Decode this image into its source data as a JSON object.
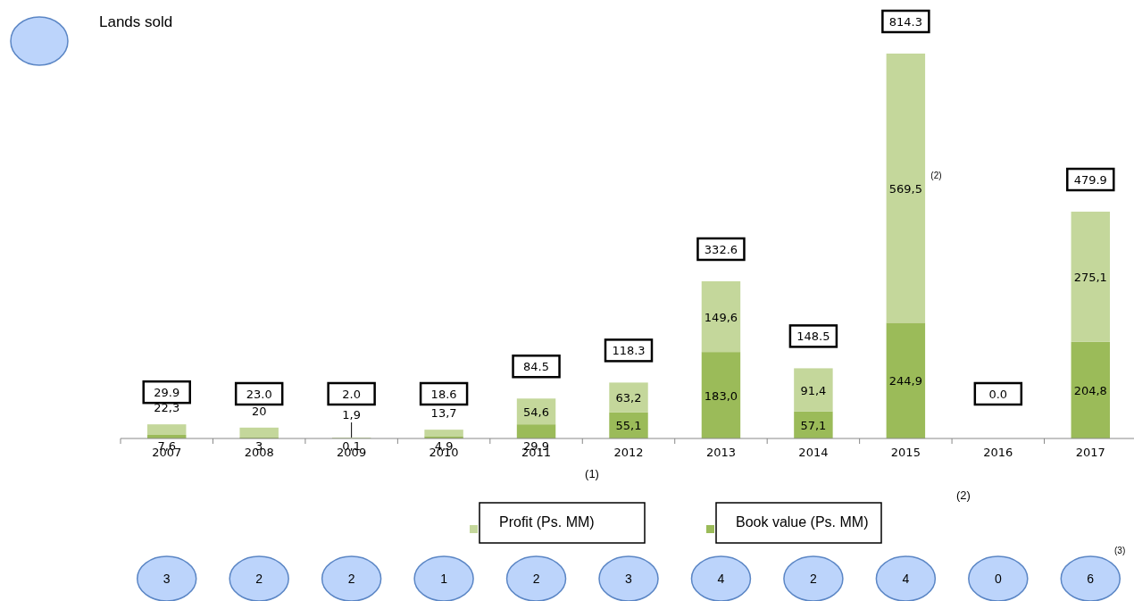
{
  "chart_data": {
    "type": "bar",
    "stacked": true,
    "categories": [
      "2007",
      "2008",
      "2009",
      "2010",
      "2011",
      "2012",
      "2013",
      "2014",
      "2015",
      "2016",
      "2017"
    ],
    "series": [
      {
        "name": "Book value (Ps. MM)",
        "color": "#9bbb59",
        "values": [
          7.6,
          3,
          0.1,
          4.9,
          29.9,
          55.1,
          183.0,
          57.1,
          244.9,
          null,
          204.8
        ],
        "value_labels": [
          "7,6",
          "3",
          "0,1",
          "4,9",
          "29,9",
          "55,1",
          "183,0",
          "57,1",
          "244,9",
          null,
          "204,8"
        ]
      },
      {
        "name": "Profit (Ps. MM)",
        "color": "#c4d79b",
        "values": [
          22.3,
          20,
          1.9,
          13.7,
          54.6,
          63.2,
          149.6,
          91.4,
          569.5,
          null,
          275.1
        ],
        "value_labels": [
          "22,3",
          "20",
          "1,9",
          "13,7",
          "54,6",
          "63,2",
          "149,6",
          "91,4",
          "569,5",
          null,
          "275,1"
        ]
      }
    ],
    "totals": [
      "29.9",
      "23.0",
      "2.0",
      "18.6",
      "84.5",
      "118.3",
      "332.6",
      "148.5",
      "814.3",
      "0.0",
      "479.9"
    ],
    "legend": "bottom",
    "annotations": [
      "Lands sold",
      "3",
      "2",
      "2",
      "1",
      "2",
      "3",
      "4",
      "2",
      "4",
      "0",
      "6",
      "(2)",
      "(1)",
      "(2)",
      "(3)"
    ]
  }
}
